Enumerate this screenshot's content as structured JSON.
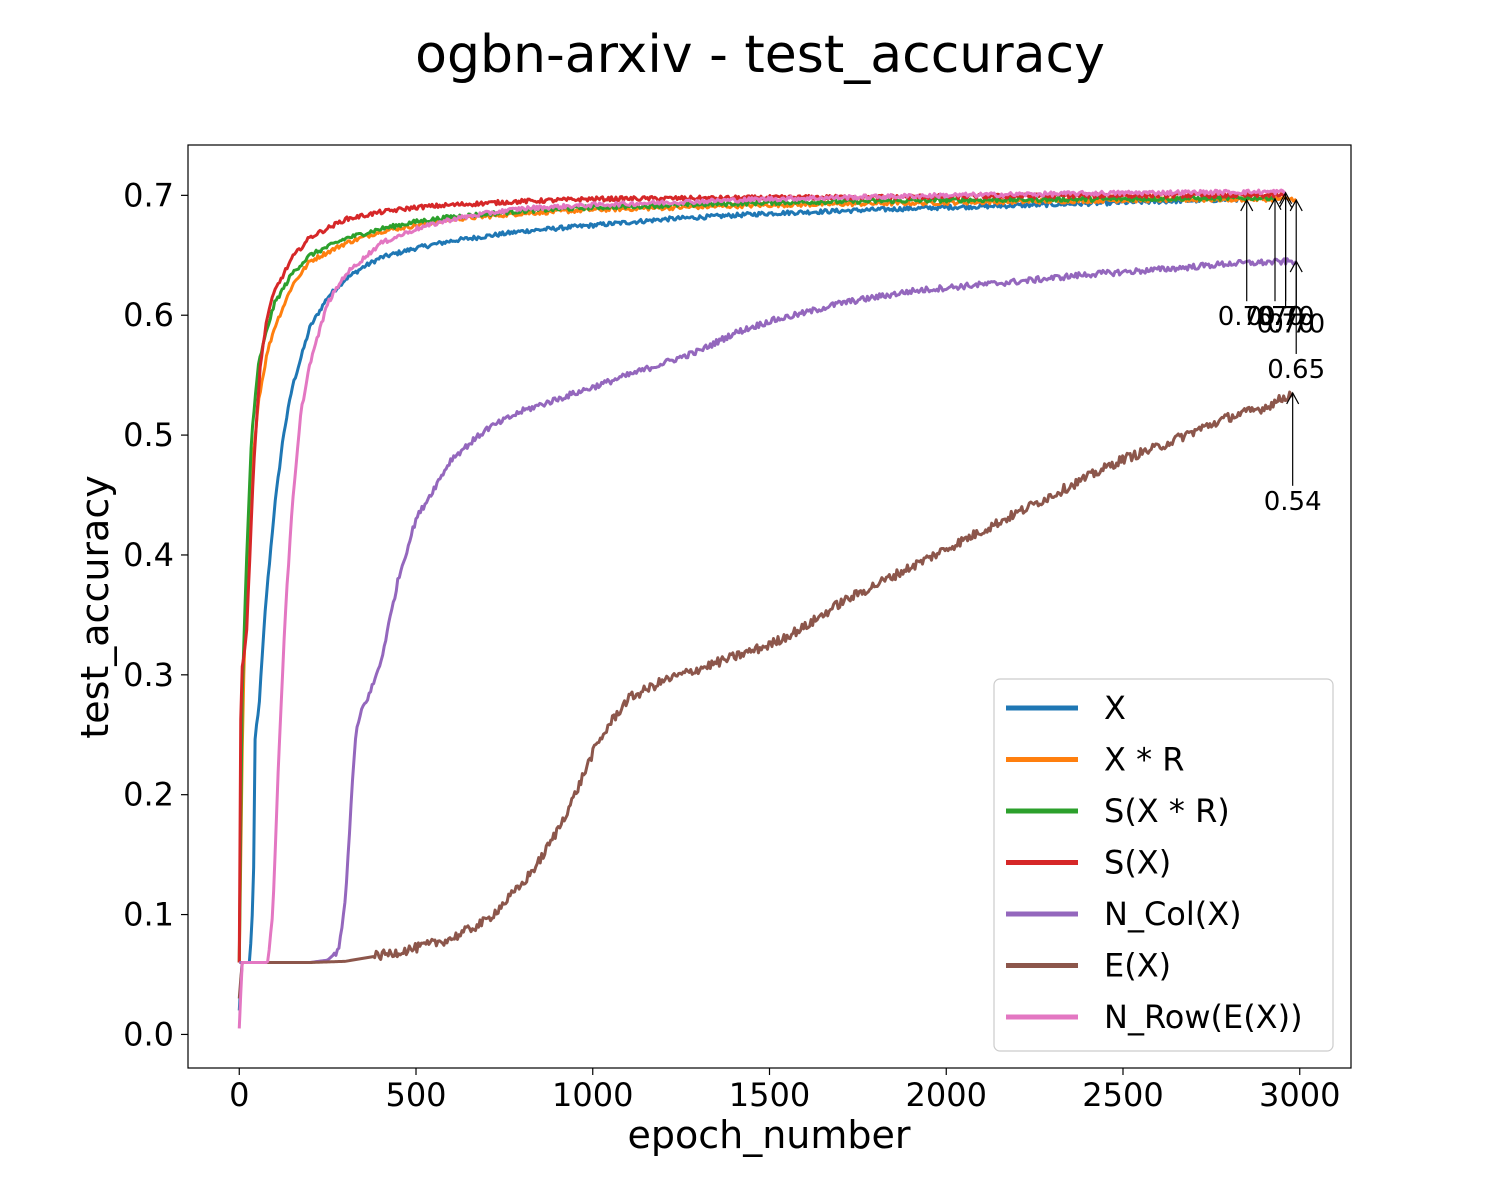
{
  "chart_data": {
    "type": "line",
    "title": "ogbn-arxiv - test_accuracy",
    "xlabel": "epoch_number",
    "ylabel": "test_accuracy",
    "xlim": [
      -145,
      3145
    ],
    "ylim": [
      -0.028,
      0.742
    ],
    "xticks": [
      0,
      500,
      1000,
      1500,
      2000,
      2500,
      3000
    ],
    "yticks": [
      0.0,
      0.1,
      0.2,
      0.3,
      0.4,
      0.5,
      0.6,
      0.7
    ],
    "legend_position": "lower-right",
    "grid": false,
    "series": [
      {
        "name": "X",
        "color": "#1f77b4",
        "points": [
          [
            0,
            0.02
          ],
          [
            8,
            0.06
          ],
          [
            30,
            0.06
          ],
          [
            40,
            0.12
          ],
          [
            45,
            0.25
          ],
          [
            55,
            0.27
          ],
          [
            75,
            0.36
          ],
          [
            100,
            0.44
          ],
          [
            125,
            0.5
          ],
          [
            150,
            0.54
          ],
          [
            200,
            0.59
          ],
          [
            250,
            0.615
          ],
          [
            300,
            0.63
          ],
          [
            350,
            0.64
          ],
          [
            400,
            0.648
          ],
          [
            500,
            0.656
          ],
          [
            600,
            0.662
          ],
          [
            700,
            0.666
          ],
          [
            800,
            0.67
          ],
          [
            1000,
            0.675
          ],
          [
            1200,
            0.68
          ],
          [
            1500,
            0.685
          ],
          [
            2000,
            0.69
          ],
          [
            2500,
            0.694
          ],
          [
            2850,
            0.697
          ]
        ],
        "end_label": "0.70",
        "end_x": 2850,
        "end_y": 0.697,
        "label_x": 2850,
        "label_y": 0.6
      },
      {
        "name": "X * R",
        "color": "#ff7f0e",
        "points": [
          [
            0,
            0.06
          ],
          [
            10,
            0.27
          ],
          [
            20,
            0.37
          ],
          [
            35,
            0.47
          ],
          [
            55,
            0.53
          ],
          [
            80,
            0.57
          ],
          [
            100,
            0.59
          ],
          [
            150,
            0.625
          ],
          [
            200,
            0.645
          ],
          [
            300,
            0.66
          ],
          [
            400,
            0.67
          ],
          [
            500,
            0.675
          ],
          [
            600,
            0.68
          ],
          [
            800,
            0.685
          ],
          [
            1000,
            0.688
          ],
          [
            1500,
            0.692
          ],
          [
            2000,
            0.694
          ],
          [
            2500,
            0.696
          ],
          [
            2990,
            0.697
          ]
        ],
        "end_label": "0.70",
        "end_x": 2990,
        "end_y": 0.697,
        "label_x": 2990,
        "label_y": 0.594
      },
      {
        "name": "S(X * R)",
        "color": "#2ca02c",
        "points": [
          [
            0,
            0.06
          ],
          [
            8,
            0.28
          ],
          [
            20,
            0.39
          ],
          [
            35,
            0.5
          ],
          [
            55,
            0.56
          ],
          [
            80,
            0.59
          ],
          [
            100,
            0.61
          ],
          [
            150,
            0.635
          ],
          [
            200,
            0.65
          ],
          [
            300,
            0.664
          ],
          [
            400,
            0.672
          ],
          [
            500,
            0.678
          ],
          [
            600,
            0.682
          ],
          [
            800,
            0.687
          ],
          [
            1000,
            0.69
          ],
          [
            1500,
            0.694
          ],
          [
            2000,
            0.696
          ],
          [
            2500,
            0.697
          ],
          [
            2930,
            0.698
          ]
        ],
        "end_label": "0.70",
        "end_x": 2930,
        "end_y": 0.698,
        "label_x": 2930,
        "label_y": 0.6
      },
      {
        "name": "S(X)",
        "color": "#d62728",
        "points": [
          [
            0,
            0.06
          ],
          [
            5,
            0.3
          ],
          [
            20,
            0.33
          ],
          [
            40,
            0.47
          ],
          [
            60,
            0.56
          ],
          [
            80,
            0.6
          ],
          [
            100,
            0.62
          ],
          [
            150,
            0.648
          ],
          [
            200,
            0.665
          ],
          [
            300,
            0.68
          ],
          [
            400,
            0.686
          ],
          [
            500,
            0.69
          ],
          [
            600,
            0.692
          ],
          [
            800,
            0.695
          ],
          [
            1000,
            0.697
          ],
          [
            1500,
            0.698
          ],
          [
            2000,
            0.699
          ],
          [
            2500,
            0.7
          ],
          [
            2960,
            0.7
          ]
        ],
        "end_label": "0.70",
        "end_x": 2960,
        "end_y": 0.7,
        "label_x": 2960,
        "label_y": 0.594
      },
      {
        "name": "N_Col(X)",
        "color": "#9467bd",
        "points": [
          [
            0,
            0.06
          ],
          [
            100,
            0.06
          ],
          [
            200,
            0.06
          ],
          [
            250,
            0.062
          ],
          [
            280,
            0.07
          ],
          [
            300,
            0.11
          ],
          [
            310,
            0.16
          ],
          [
            320,
            0.21
          ],
          [
            330,
            0.25
          ],
          [
            345,
            0.27
          ],
          [
            370,
            0.285
          ],
          [
            400,
            0.31
          ],
          [
            450,
            0.38
          ],
          [
            500,
            0.43
          ],
          [
            600,
            0.48
          ],
          [
            700,
            0.505
          ],
          [
            800,
            0.52
          ],
          [
            900,
            0.53
          ],
          [
            1000,
            0.54
          ],
          [
            1100,
            0.55
          ],
          [
            1200,
            0.56
          ],
          [
            1300,
            0.57
          ],
          [
            1400,
            0.585
          ],
          [
            1500,
            0.595
          ],
          [
            1600,
            0.602
          ],
          [
            1700,
            0.61
          ],
          [
            1800,
            0.615
          ],
          [
            1900,
            0.62
          ],
          [
            2000,
            0.623
          ],
          [
            2200,
            0.628
          ],
          [
            2400,
            0.634
          ],
          [
            2600,
            0.638
          ],
          [
            2800,
            0.643
          ],
          [
            2990,
            0.645
          ]
        ],
        "end_label": "0.65",
        "end_x": 2990,
        "end_y": 0.646,
        "label_x": 2990,
        "label_y": 0.556
      },
      {
        "name": "E(X)",
        "color": "#8c564b",
        "points": [
          [
            0,
            0.03
          ],
          [
            8,
            0.06
          ],
          [
            100,
            0.06
          ],
          [
            200,
            0.06
          ],
          [
            300,
            0.061
          ],
          [
            400,
            0.066
          ],
          [
            500,
            0.072
          ],
          [
            600,
            0.08
          ],
          [
            700,
            0.095
          ],
          [
            800,
            0.125
          ],
          [
            850,
            0.145
          ],
          [
            900,
            0.17
          ],
          [
            950,
            0.2
          ],
          [
            1000,
            0.235
          ],
          [
            1050,
            0.26
          ],
          [
            1100,
            0.28
          ],
          [
            1200,
            0.295
          ],
          [
            1300,
            0.305
          ],
          [
            1400,
            0.315
          ],
          [
            1500,
            0.325
          ],
          [
            1600,
            0.34
          ],
          [
            1700,
            0.36
          ],
          [
            1800,
            0.375
          ],
          [
            1900,
            0.39
          ],
          [
            2000,
            0.405
          ],
          [
            2100,
            0.42
          ],
          [
            2200,
            0.435
          ],
          [
            2300,
            0.45
          ],
          [
            2400,
            0.465
          ],
          [
            2500,
            0.48
          ],
          [
            2600,
            0.49
          ],
          [
            2700,
            0.503
          ],
          [
            2800,
            0.515
          ],
          [
            2900,
            0.523
          ],
          [
            2980,
            0.535
          ]
        ],
        "end_label": "0.54",
        "end_x": 2980,
        "end_y": 0.536,
        "label_x": 2980,
        "label_y": 0.446
      },
      {
        "name": "N_Row(E(X))",
        "color": "#e377c2",
        "points": [
          [
            0,
            0.005
          ],
          [
            8,
            0.06
          ],
          [
            80,
            0.06
          ],
          [
            95,
            0.1
          ],
          [
            110,
            0.22
          ],
          [
            130,
            0.35
          ],
          [
            150,
            0.44
          ],
          [
            175,
            0.52
          ],
          [
            200,
            0.56
          ],
          [
            250,
            0.61
          ],
          [
            300,
            0.634
          ],
          [
            400,
            0.66
          ],
          [
            500,
            0.672
          ],
          [
            600,
            0.68
          ],
          [
            700,
            0.685
          ],
          [
            800,
            0.689
          ],
          [
            1000,
            0.692
          ],
          [
            1500,
            0.697
          ],
          [
            2000,
            0.7
          ],
          [
            2500,
            0.702
          ],
          [
            2960,
            0.703
          ]
        ],
        "end_label": "0.70",
        "end_x": 2960,
        "end_y": 0.703,
        "label_x": 2960,
        "label_y": 0.6
      }
    ]
  }
}
